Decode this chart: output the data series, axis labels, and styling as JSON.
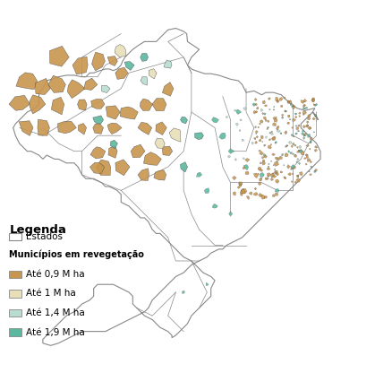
{
  "figsize": [
    4.19,
    4.16
  ],
  "dpi": 100,
  "background_color": "#ffffff",
  "legend_title": "Legenda",
  "legend_subtitle1": "Estados",
  "legend_subtitle2": "Municípios em revegetação",
  "legend_items": [
    {
      "label": "Até 0,9 M ha",
      "color": "#C8964E"
    },
    {
      "label": "Até 1 M ha",
      "color": "#E8DEB8"
    },
    {
      "label": "Até 1,4 M ha",
      "color": "#B8DDD0"
    },
    {
      "label": "Até 1,9 M ha",
      "color": "#5BB8A0"
    }
  ],
  "estado_facecolor": "#FFFFFF",
  "estado_edgecolor": "#888888",
  "map_xlim": [
    -75,
    -28
  ],
  "map_ylim": [
    -35,
    6
  ]
}
